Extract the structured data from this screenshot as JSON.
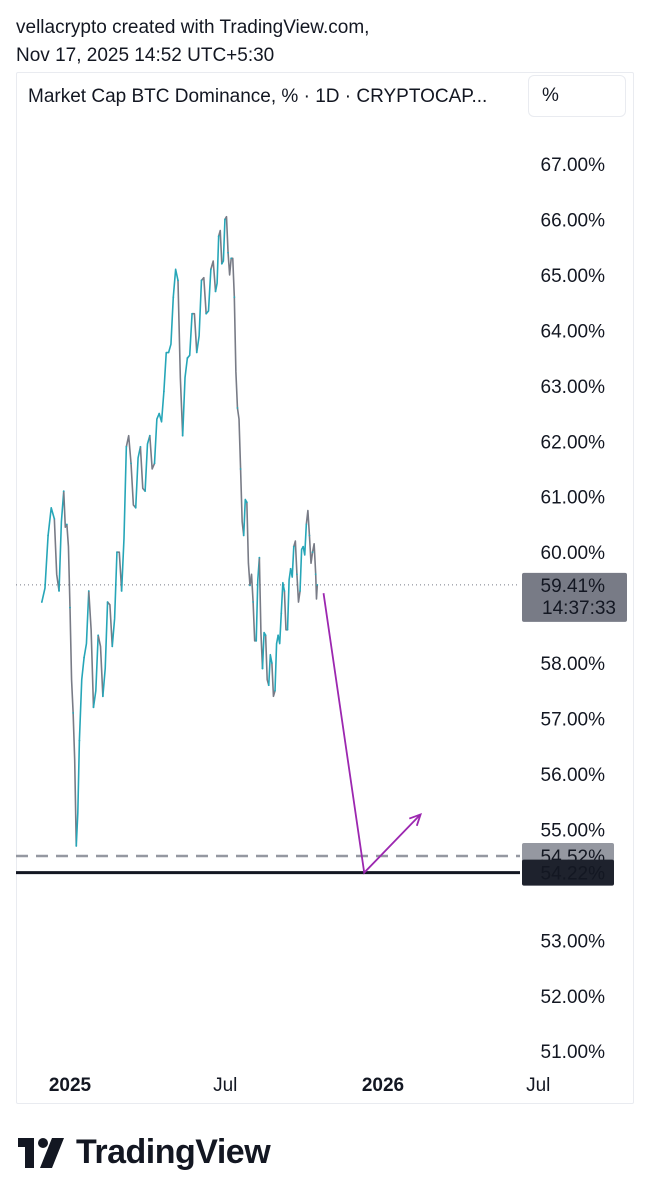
{
  "header": {
    "line1": "vellacrypto created with TradingView.com,",
    "line2": "Nov 17, 2025 14:52 UTC+5:30"
  },
  "symbol_label": "Market Cap BTC Dominance, % · 1D · CRYPTOCAP...",
  "scale_button": "%",
  "brand": "TradingView",
  "colors": {
    "up": "#26a6b8",
    "down": "#787b86",
    "arrow": "#9c27b0",
    "support_solid": "#131722",
    "support_dashed": "#9598a1",
    "price_label_bg": "#787b86",
    "support_label_bg": "#1e222d"
  },
  "chart_data": {
    "type": "line",
    "ylim": [
      50.5,
      67.6
    ],
    "y_ticks": [
      {
        "value": 67,
        "label": "67.00%"
      },
      {
        "value": 66,
        "label": "66.00%"
      },
      {
        "value": 65,
        "label": "65.00%"
      },
      {
        "value": 64,
        "label": "64.00%"
      },
      {
        "value": 63,
        "label": "63.00%"
      },
      {
        "value": 62,
        "label": "62.00%"
      },
      {
        "value": 61,
        "label": "61.00%"
      },
      {
        "value": 60,
        "label": "60.00%"
      },
      {
        "value": 58,
        "label": "58.00%"
      },
      {
        "value": 57,
        "label": "57.00%"
      },
      {
        "value": 56,
        "label": "56.00%"
      },
      {
        "value": 55,
        "label": "55.00%"
      },
      {
        "value": 53,
        "label": "53.00%"
      },
      {
        "value": 52,
        "label": "52.00%"
      },
      {
        "value": 51,
        "label": "51.00%"
      }
    ],
    "x_ticks": [
      {
        "label": "2025",
        "bold": true,
        "t": 0.0
      },
      {
        "label": "Jul",
        "bold": false,
        "t": 0.496
      },
      {
        "label": "2026",
        "bold": true,
        "t": 1.0
      },
      {
        "label": "Jul",
        "bold": false,
        "t": 1.496
      }
    ],
    "x_range_t": [
      -0.1,
      1.56
    ],
    "series": [
      {
        "values": [
          [
            -0.09,
            59.1
          ],
          [
            -0.07,
            60.3
          ],
          [
            -0.05,
            60.6
          ],
          [
            -0.035,
            59.3
          ],
          [
            -0.02,
            61.1
          ],
          [
            -0.01,
            60.5
          ],
          [
            0.0,
            59.0
          ],
          [
            0.01,
            57.1
          ],
          [
            0.02,
            54.7
          ],
          [
            0.03,
            56.6
          ],
          [
            0.045,
            58.1
          ],
          [
            0.06,
            59.3
          ],
          [
            0.075,
            57.2
          ],
          [
            0.09,
            58.5
          ],
          [
            0.105,
            57.4
          ],
          [
            0.12,
            59.1
          ],
          [
            0.135,
            58.3
          ],
          [
            0.15,
            60.0
          ],
          [
            0.165,
            59.3
          ],
          [
            0.18,
            61.9
          ],
          [
            0.195,
            61.6
          ],
          [
            0.21,
            60.8
          ],
          [
            0.225,
            61.9
          ],
          [
            0.24,
            61.1
          ],
          [
            0.255,
            62.1
          ],
          [
            0.27,
            61.6
          ],
          [
            0.285,
            62.5
          ],
          [
            0.3,
            62.9
          ],
          [
            0.315,
            63.6
          ],
          [
            0.33,
            64.6
          ],
          [
            0.345,
            64.9
          ],
          [
            0.36,
            62.1
          ],
          [
            0.375,
            63.5
          ],
          [
            0.39,
            64.3
          ],
          [
            0.405,
            63.6
          ],
          [
            0.42,
            64.9
          ],
          [
            0.435,
            64.3
          ],
          [
            0.45,
            65.1
          ],
          [
            0.465,
            64.7
          ],
          [
            0.475,
            65.7
          ],
          [
            0.485,
            65.2
          ],
          [
            0.495,
            66.0
          ],
          [
            0.505,
            65.4
          ],
          [
            0.515,
            65.3
          ],
          [
            0.525,
            64.6
          ],
          [
            0.535,
            62.6
          ],
          [
            0.545,
            61.5
          ],
          [
            0.555,
            60.3
          ],
          [
            0.565,
            60.9
          ],
          [
            0.575,
            59.4
          ],
          [
            0.585,
            59.1
          ],
          [
            0.595,
            58.4
          ],
          [
            0.605,
            59.9
          ],
          [
            0.615,
            57.9
          ],
          [
            0.625,
            58.5
          ],
          [
            0.635,
            57.6
          ],
          [
            0.645,
            58.0
          ],
          [
            0.655,
            57.5
          ],
          [
            0.665,
            58.5
          ],
          [
            0.675,
            58.9
          ],
          [
            0.685,
            59.3
          ],
          [
            0.695,
            58.6
          ],
          [
            0.705,
            59.7
          ],
          [
            0.715,
            60.1
          ],
          [
            0.725,
            59.6
          ],
          [
            0.735,
            59.3
          ],
          [
            0.745,
            60.1
          ],
          [
            0.755,
            60.5
          ],
          [
            0.765,
            60.3
          ],
          [
            0.775,
            60.0
          ],
          [
            0.785,
            59.6
          ],
          [
            0.79,
            59.41
          ]
        ]
      }
    ],
    "current": {
      "value": 59.41,
      "label": "59.41%",
      "countdown": "14:37:33"
    },
    "levels": [
      {
        "value": 54.52,
        "label": "54.52%",
        "style": "dashed"
      },
      {
        "value": 54.22,
        "label": "54.22%",
        "style": "solid"
      }
    ],
    "projection": [
      [
        0.81,
        59.26
      ],
      [
        0.94,
        54.22
      ],
      [
        1.12,
        55.27
      ]
    ]
  }
}
